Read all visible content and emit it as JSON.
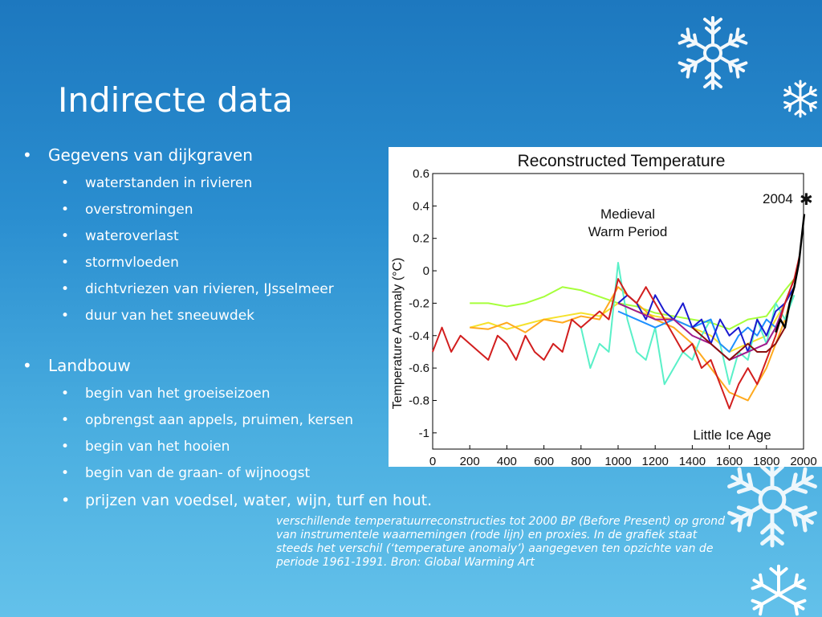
{
  "slide": {
    "title": "Indirecte data",
    "sections": [
      {
        "label": "Gegevens van dijkgraven",
        "items": [
          "waterstanden in rivieren",
          "overstromingen",
          "wateroverlast",
          "stormvloeden",
          "dichtvriezen van rivieren, IJsselmeer",
          "duur van het sneeuwdek"
        ]
      },
      {
        "label": "Landbouw",
        "items": [
          "begin van het groeiseizoen",
          "opbrengst aan appels, pruimen, kersen",
          "begin van het hooien",
          "begin van de graan- of wijnoogst",
          "prijzen van voedsel, water, wijn, turf en hout."
        ]
      }
    ],
    "caption_lines": [
      "verschillende temperatuurreconstructies tot 2000 BP (Before Present) op grond",
      "van instrumentele waarnemingen (rode lijn) en proxies. In de grafiek staat",
      "steeds het verschil (‘temperature anomaly’) aangegeven ten opzichte van de",
      "periode 1961-1991. Bron: Global Warming Art"
    ],
    "bullet_symbol": "•"
  },
  "chart_data": {
    "type": "line",
    "title": "Reconstructed Temperature",
    "xlabel": "",
    "ylabel": "Temperature Anomaly (°C)",
    "xlim": [
      0,
      2000
    ],
    "ylim": [
      -1.1,
      0.6
    ],
    "xticks": [
      "0",
      "200",
      "400",
      "600",
      "800",
      "1000",
      "1200",
      "1400",
      "1600",
      "1800",
      "2000"
    ],
    "yticks": [
      "0.6",
      "0.4",
      "0.2",
      "0",
      "-0.2",
      "-0.4",
      "-0.6",
      "-0.8",
      "-1"
    ],
    "annotations": [
      "Medieval",
      "Warm Period",
      "Little Ice Age",
      "2004"
    ],
    "series": [
      {
        "color": "#a6ff3b",
        "x": [
          200,
          300,
          400,
          500,
          600,
          700,
          800,
          900,
          1000,
          1100,
          1200,
          1300,
          1400,
          1500,
          1600,
          1700,
          1800,
          1900,
          1950
        ],
        "y": [
          -0.2,
          -0.2,
          -0.22,
          -0.2,
          -0.16,
          -0.1,
          -0.12,
          -0.16,
          -0.2,
          -0.22,
          -0.26,
          -0.28,
          -0.3,
          -0.32,
          -0.36,
          -0.3,
          -0.28,
          -0.12,
          -0.05
        ]
      },
      {
        "color": "#f5e22c",
        "x": [
          200,
          300,
          400,
          500,
          600,
          700,
          800,
          900,
          1000,
          1100,
          1200,
          1300,
          1400,
          1500,
          1600,
          1700,
          1800,
          1900,
          1950
        ],
        "y": [
          -0.35,
          -0.32,
          -0.36,
          -0.33,
          -0.3,
          -0.28,
          -0.26,
          -0.28,
          -0.2,
          -0.25,
          -0.28,
          -0.3,
          -0.35,
          -0.4,
          -0.5,
          -0.45,
          -0.4,
          -0.2,
          -0.1
        ]
      },
      {
        "color": "#ffaa1e",
        "x": [
          200,
          300,
          400,
          500,
          600,
          700,
          800,
          900,
          1000,
          1100,
          1200,
          1300,
          1400,
          1500,
          1600,
          1700,
          1800,
          1900,
          1950
        ],
        "y": [
          -0.35,
          -0.36,
          -0.32,
          -0.38,
          -0.3,
          -0.32,
          -0.28,
          -0.3,
          -0.1,
          -0.2,
          -0.3,
          -0.35,
          -0.45,
          -0.6,
          -0.75,
          -0.8,
          -0.6,
          -0.3,
          -0.1
        ]
      },
      {
        "color": "#5af0c8",
        "x": [
          800,
          850,
          900,
          950,
          1000,
          1050,
          1100,
          1150,
          1200,
          1250,
          1300,
          1350,
          1400,
          1450,
          1500,
          1550,
          1600,
          1650,
          1700,
          1750,
          1800,
          1850,
          1900,
          1950
        ],
        "y": [
          -0.35,
          -0.6,
          -0.45,
          -0.5,
          0.05,
          -0.3,
          -0.5,
          -0.55,
          -0.35,
          -0.7,
          -0.6,
          -0.5,
          -0.55,
          -0.4,
          -0.3,
          -0.45,
          -0.7,
          -0.5,
          -0.55,
          -0.3,
          -0.45,
          -0.2,
          -0.3,
          -0.15
        ]
      },
      {
        "color": "#1e90ff",
        "x": [
          1000,
          1100,
          1200,
          1300,
          1400,
          1500,
          1550,
          1600,
          1650,
          1700,
          1750,
          1800,
          1850,
          1900,
          1950
        ],
        "y": [
          -0.25,
          -0.3,
          -0.35,
          -0.3,
          -0.35,
          -0.3,
          -0.45,
          -0.5,
          -0.4,
          -0.35,
          -0.4,
          -0.3,
          -0.35,
          -0.2,
          -0.1
        ]
      },
      {
        "color": "#1a1ad0",
        "x": [
          1000,
          1050,
          1100,
          1150,
          1200,
          1250,
          1300,
          1350,
          1400,
          1450,
          1500,
          1550,
          1600,
          1650,
          1700,
          1750,
          1800,
          1850,
          1900,
          1950
        ],
        "y": [
          -0.2,
          -0.15,
          -0.2,
          -0.3,
          -0.15,
          -0.25,
          -0.3,
          -0.2,
          -0.35,
          -0.3,
          -0.45,
          -0.3,
          -0.4,
          -0.35,
          -0.5,
          -0.3,
          -0.4,
          -0.25,
          -0.2,
          -0.1
        ]
      },
      {
        "color": "#a01a8c",
        "x": [
          1000,
          1100,
          1200,
          1300,
          1400,
          1500,
          1600,
          1700,
          1800,
          1850,
          1900,
          1950
        ],
        "y": [
          -0.2,
          -0.25,
          -0.3,
          -0.3,
          -0.4,
          -0.45,
          -0.55,
          -0.5,
          -0.45,
          -0.35,
          -0.2,
          -0.05
        ]
      },
      {
        "color": "#d21e1e",
        "x": [
          0,
          50,
          100,
          150,
          200,
          250,
          300,
          350,
          400,
          450,
          500,
          550,
          600,
          650,
          700,
          750,
          800,
          850,
          900,
          950,
          1000,
          1050,
          1100,
          1150,
          1200,
          1250,
          1300,
          1350,
          1400,
          1450,
          1500,
          1550,
          1600,
          1650,
          1700,
          1750,
          1800,
          1850,
          1900,
          1950,
          1980
        ],
        "y": [
          -0.5,
          -0.35,
          -0.5,
          -0.4,
          -0.45,
          -0.5,
          -0.55,
          -0.4,
          -0.45,
          -0.55,
          -0.4,
          -0.5,
          -0.55,
          -0.45,
          -0.5,
          -0.3,
          -0.35,
          -0.3,
          -0.25,
          -0.3,
          -0.05,
          -0.15,
          -0.2,
          -0.1,
          -0.2,
          -0.3,
          -0.4,
          -0.5,
          -0.45,
          -0.6,
          -0.55,
          -0.7,
          -0.85,
          -0.7,
          -0.6,
          -0.7,
          -0.55,
          -0.4,
          -0.2,
          -0.05,
          0.1
        ]
      },
      {
        "color": "#8b1010",
        "x": [
          1400,
          1450,
          1500,
          1550,
          1600,
          1650,
          1700,
          1750,
          1800,
          1850,
          1900
        ],
        "y": [
          -0.35,
          -0.4,
          -0.45,
          -0.5,
          -0.55,
          -0.5,
          -0.45,
          -0.5,
          -0.5,
          -0.45,
          -0.35
        ]
      },
      {
        "color": "#000000",
        "x": [
          1850,
          1875,
          1900,
          1925,
          1950,
          1975,
          2004
        ],
        "y": [
          -0.38,
          -0.3,
          -0.35,
          -0.2,
          -0.1,
          0.05,
          0.35
        ]
      }
    ]
  }
}
